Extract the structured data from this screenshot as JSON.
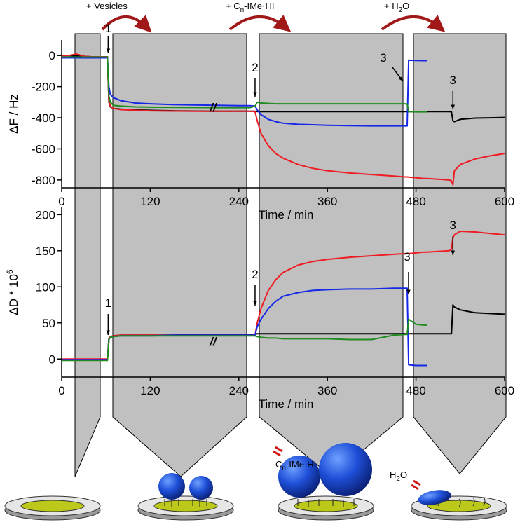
{
  "steps": {
    "vesicles": "+ Vesicles",
    "compound": {
      "prefix": "+ C",
      "sub": "n",
      "suffix": "-IMe·HI"
    },
    "water": {
      "prefix": "+ H",
      "sub": "2",
      "suffix": "O"
    }
  },
  "diagram_labels": {
    "compound": {
      "prefix": "C",
      "sub": "n",
      "suffix": "-IMe·HI"
    },
    "water": {
      "prefix": "H",
      "sub": "2",
      "suffix": "O"
    }
  },
  "chart_data": [
    {
      "type": "line",
      "xlabel": "Time / min",
      "ylabel": "ΔF / Hz",
      "x": [
        0,
        10,
        20,
        30,
        40,
        50,
        60,
        62,
        64,
        66,
        70,
        80,
        100,
        120,
        150,
        180,
        210,
        240,
        255,
        262,
        265,
        270,
        280,
        290,
        300,
        320,
        340,
        360,
        390,
        420,
        450,
        465,
        468,
        470,
        480,
        490,
        495,
        510,
        525,
        528,
        530,
        532,
        540,
        560,
        580,
        600
      ],
      "xlim": [
        0,
        600
      ],
      "xticks": [
        0,
        120,
        240,
        360,
        480,
        600
      ],
      "ylim": [
        -850,
        100
      ],
      "yticks": [
        0,
        -200,
        -400,
        -600,
        -800
      ],
      "annotations": [
        "1",
        "2",
        "3",
        "3",
        "//"
      ],
      "series": [
        {
          "color": "#000000",
          "values": [
            0,
            0,
            -2,
            -5,
            -8,
            -8,
            -8,
            -8,
            -300,
            -330,
            -340,
            -345,
            -350,
            -352,
            -355,
            -357,
            -358,
            -358,
            -358,
            -358,
            -360,
            -360,
            -360,
            -360,
            -360,
            -360,
            -360,
            -360,
            -360,
            -360,
            -360,
            -360,
            -360,
            -360,
            -360,
            -360,
            -360,
            -360,
            -360,
            -362,
            -420,
            -425,
            -410,
            -402,
            -400,
            -398
          ]
        },
        {
          "color": "#ee1c24",
          "values": [
            0,
            0,
            10,
            -5,
            -8,
            -8,
            -8,
            -8,
            -290,
            -325,
            -340,
            -348,
            -352,
            -355,
            -357,
            -358,
            -358,
            -358,
            -358,
            -360,
            -420,
            -500,
            -580,
            -630,
            -660,
            -700,
            -725,
            -740,
            -755,
            -765,
            -775,
            -780,
            -780,
            -781,
            -785,
            -790,
            -790,
            -795,
            -800,
            -805,
            -830,
            -740,
            -700,
            -665,
            -645,
            -630
          ]
        },
        {
          "color": "#1428e6",
          "values": [
            -15,
            -15,
            -15,
            -15,
            -15,
            -15,
            -15,
            -15,
            -200,
            -250,
            -270,
            -290,
            -305,
            -310,
            -315,
            -318,
            -320,
            -322,
            -322,
            -325,
            -350,
            -380,
            -410,
            -425,
            -435,
            -442,
            -445,
            -448,
            -450,
            -452,
            -452,
            -452,
            -452,
            -30,
            -32,
            -33,
            -33,
            null,
            null,
            null,
            null,
            null,
            null,
            null,
            null,
            null
          ]
        },
        {
          "color": "#1e8c1e",
          "values": [
            -10,
            -10,
            -10,
            -10,
            -10,
            -10,
            -10,
            -10,
            -260,
            -300,
            -320,
            -325,
            -330,
            -332,
            -333,
            -334,
            -335,
            -335,
            -335,
            -325,
            -300,
            -305,
            -308,
            -310,
            -310,
            -310,
            -310,
            -310,
            -310,
            -310,
            -310,
            -310,
            -312,
            -360,
            -362,
            -362,
            -362,
            null,
            null,
            null,
            null,
            null,
            null,
            null,
            null,
            null
          ]
        }
      ]
    },
    {
      "type": "line",
      "xlabel": "Time / min",
      "ylabel": {
        "text": "ΔD * 10",
        "sup": "6"
      },
      "x": [
        0,
        10,
        20,
        30,
        40,
        50,
        60,
        62,
        64,
        66,
        70,
        80,
        100,
        120,
        150,
        180,
        210,
        240,
        255,
        262,
        265,
        270,
        280,
        290,
        300,
        320,
        340,
        360,
        390,
        420,
        450,
        465,
        468,
        470,
        480,
        490,
        495,
        510,
        525,
        528,
        530,
        532,
        540,
        560,
        580,
        600
      ],
      "xlim": [
        0,
        600
      ],
      "xticks": [
        0,
        120,
        240,
        360,
        480,
        600
      ],
      "ylim": [
        -25,
        210
      ],
      "yticks": [
        0,
        50,
        100,
        150,
        200
      ],
      "annotations": [
        "1",
        "2",
        "3",
        "3",
        "//"
      ],
      "series": [
        {
          "color": "#000000",
          "values": [
            -1,
            -1,
            -1,
            -1,
            -1,
            -1,
            -1,
            -1,
            28,
            31,
            32,
            33,
            33,
            33,
            33,
            34,
            34,
            34,
            34,
            34,
            35,
            35,
            35,
            35,
            35,
            35,
            35,
            35,
            35,
            35,
            35,
            35,
            35,
            35,
            35,
            35,
            35,
            35,
            35,
            35,
            75,
            72,
            68,
            64,
            63,
            62
          ]
        },
        {
          "color": "#ee1c24",
          "values": [
            0,
            0,
            0,
            0,
            0,
            0,
            0,
            0,
            28,
            31,
            32,
            33,
            33,
            33,
            33,
            33,
            33,
            33,
            33,
            33,
            50,
            70,
            95,
            110,
            120,
            130,
            135,
            138,
            141,
            143,
            145,
            146,
            146,
            146,
            147,
            148,
            148,
            149,
            150,
            152,
            168,
            172,
            177,
            176,
            174,
            172
          ]
        },
        {
          "color": "#1428e6",
          "values": [
            -1,
            -1,
            -1,
            -1,
            -1,
            -1,
            -1,
            -1,
            27,
            30,
            31,
            32,
            32,
            32,
            33,
            33,
            33,
            33,
            33,
            33,
            45,
            55,
            70,
            80,
            87,
            92,
            95,
            96,
            97,
            97,
            98,
            98,
            98,
            -8,
            -9,
            -9,
            -9,
            null,
            null,
            null,
            null,
            null,
            null,
            null,
            null,
            null
          ]
        },
        {
          "color": "#1e8c1e",
          "values": [
            -2,
            -2,
            -2,
            -2,
            -2,
            -2,
            -2,
            -2,
            27,
            30,
            31,
            32,
            32,
            32,
            32,
            32,
            32,
            32,
            32,
            32,
            31,
            30,
            29,
            29,
            28,
            28,
            28,
            28,
            27,
            27,
            33,
            34,
            34,
            55,
            48,
            47,
            47,
            null,
            null,
            null,
            null,
            null,
            null,
            null,
            null,
            null
          ]
        }
      ]
    }
  ]
}
